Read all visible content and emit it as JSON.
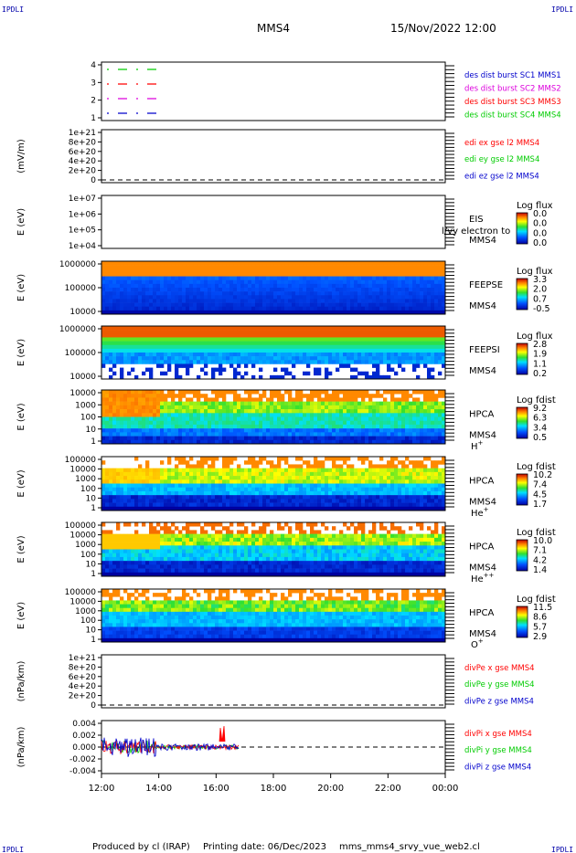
{
  "header": {
    "corner_left": "IPDLI",
    "corner_right": "IPDLI",
    "mission": "MMS4",
    "datetime": "15/Nov/2022 12:00"
  },
  "footer": {
    "produced_by": "Produced by cl (IRAP)",
    "printing_date": "Printing date: 06/Dec/2023",
    "script_name": "mms_mms4_srvy_vue_web2.cl",
    "corner_left": "IPDLI",
    "corner_right": "IPDLI"
  },
  "colors": {
    "red": "#ff0000",
    "green": "#00cc00",
    "blue": "#0000cc",
    "magenta": "#dd00dd"
  },
  "chart_data": {
    "type": "line",
    "x_axis": {
      "ticks": [
        "12:00",
        "14:00",
        "16:00",
        "18:00",
        "20:00",
        "22:00",
        "00:00"
      ],
      "range": [
        "2022-11-15 12:00",
        "2022-11-16 00:00"
      ]
    },
    "panels": [
      {
        "id": "des-dist-burst",
        "ylabel": "",
        "yticks": [
          "4",
          "3",
          "2",
          "1"
        ],
        "legend": [
          {
            "label": "des dist burst SC1 MMS1",
            "color": "#0000cc"
          },
          {
            "label": "des dist burst SC2 MMS2",
            "color": "#dd00dd"
          },
          {
            "label": "des dist burst SC3 MMS3",
            "color": "#ff0000"
          },
          {
            "label": "des dist burst SC4 MMS4",
            "color": "#00cc00"
          }
        ]
      },
      {
        "id": "edi-e-gse",
        "ylabel": "(mV/m)",
        "yticks": [
          "1e+21",
          "8e+20",
          "6e+20",
          "4e+20",
          "2e+20",
          "0"
        ],
        "legend": [
          {
            "label": "edi ex gse l2 MMS4",
            "color": "#ff0000"
          },
          {
            "label": "edi ey gse l2 MMS4",
            "color": "#00cc00"
          },
          {
            "label": "edi ez gse l2 MMS4",
            "color": "#0000cc"
          }
        ]
      },
      {
        "id": "eis",
        "ylabel": "E (eV)",
        "yticks": [
          "1e+07",
          "1e+06",
          "1e+05",
          "1e+04"
        ],
        "labels": [
          "EIS",
          "MMS4"
        ],
        "overlay_text": "l/vy electron to",
        "colorbar": {
          "title": "Log flux",
          "ticks": [
            "0.0",
            "0.0",
            "0.0",
            "0.0"
          ]
        }
      },
      {
        "id": "feepse",
        "ylabel": "E (eV)",
        "yticks": [
          "1000000",
          "100000",
          "10000"
        ],
        "labels": [
          "FEEPSE",
          "MMS4"
        ],
        "colorbar": {
          "title": "Log flux",
          "ticks": [
            "3.3",
            "2.0",
            "0.7",
            "-0.5"
          ]
        }
      },
      {
        "id": "feepsi",
        "ylabel": "E (eV)",
        "yticks": [
          "1000000",
          "100000",
          "10000"
        ],
        "labels": [
          "FEEPSI",
          "MMS4"
        ],
        "colorbar": {
          "title": "Log flux",
          "ticks": [
            "2.8",
            "1.9",
            "1.1",
            "0.2"
          ]
        }
      },
      {
        "id": "hpca-h",
        "ylabel": "E (eV)",
        "yticks": [
          "10000",
          "1000",
          "100",
          "10",
          "1"
        ],
        "labels": [
          "HPCA",
          "MMS4"
        ],
        "species": "H",
        "species_charge": "+",
        "colorbar": {
          "title": "Log fdist",
          "ticks": [
            "9.2",
            "6.3",
            "3.4",
            "0.5"
          ]
        }
      },
      {
        "id": "hpca-he",
        "ylabel": "E (eV)",
        "yticks": [
          "100000",
          "10000",
          "1000",
          "100",
          "10",
          "1"
        ],
        "labels": [
          "HPCA",
          "MMS4"
        ],
        "species": "He",
        "species_charge": "+",
        "colorbar": {
          "title": "Log fdist",
          "ticks": [
            "10.2",
            "7.4",
            "4.5",
            "1.7"
          ]
        }
      },
      {
        "id": "hpca-he2",
        "ylabel": "E (eV)",
        "yticks": [
          "100000",
          "10000",
          "1000",
          "100",
          "10",
          "1"
        ],
        "labels": [
          "HPCA",
          "MMS4"
        ],
        "species": "He",
        "species_charge": "++",
        "colorbar": {
          "title": "Log fdist",
          "ticks": [
            "10.0",
            "7.1",
            "4.2",
            "1.4"
          ]
        }
      },
      {
        "id": "hpca-o",
        "ylabel": "E (eV)",
        "yticks": [
          "100000",
          "10000",
          "1000",
          "100",
          "10",
          "1"
        ],
        "labels": [
          "HPCA",
          "MMS4"
        ],
        "species": "O",
        "species_charge": "+",
        "colorbar": {
          "title": "Log fdist",
          "ticks": [
            "11.5",
            "8.6",
            "5.7",
            "2.9"
          ]
        }
      },
      {
        "id": "divpe",
        "ylabel": "(nPa/km)",
        "yticks": [
          "1e+21",
          "8e+20",
          "6e+20",
          "4e+20",
          "2e+20",
          "0"
        ],
        "legend": [
          {
            "label": "divPe x gse MMS4",
            "color": "#ff0000"
          },
          {
            "label": "divPe y gse MMS4",
            "color": "#00cc00"
          },
          {
            "label": "divPe z gse MMS4",
            "color": "#0000cc"
          }
        ]
      },
      {
        "id": "divpi",
        "ylabel": "(nPa/km)",
        "yticks": [
          "0.004",
          "0.002",
          "0.000",
          "-0.002",
          "-0.004"
        ],
        "ylim": [
          -0.005,
          0.005
        ],
        "legend": [
          {
            "label": "divPi x gse MMS4",
            "color": "#ff0000"
          },
          {
            "label": "divPi y gse MMS4",
            "color": "#00cc00"
          },
          {
            "label": "divPi z gse MMS4",
            "color": "#0000cc"
          }
        ]
      }
    ]
  }
}
